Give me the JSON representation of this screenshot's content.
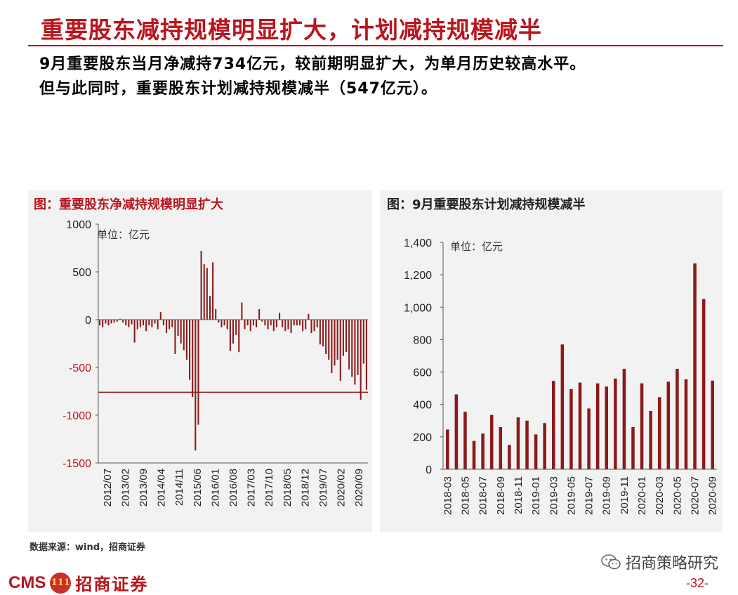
{
  "page": {
    "title": "重要股东减持规模明显扩大，计划减持规模减半",
    "summary_line1": "9月重要股东当月净减持734亿元，较前期明显扩大，为单月历史较高水平。",
    "summary_line2": "但与此同时，重要股东计划减持规模减半（547亿元）。",
    "source": "数据来源：wind，招商证券",
    "wechat_label": "招商策略研究",
    "logo_cms": "CMS",
    "logo_badge": "111",
    "logo_cn": "招商证券",
    "page_number": "-32-"
  },
  "colors": {
    "accent": "#b8151d",
    "bar": "#8b1a1a",
    "panel_bg": "#f2f2f2"
  },
  "chart_data": [
    {
      "type": "bar",
      "title": "图：重要股东净减持规模明显扩大",
      "unit_label": "单位：亿元",
      "ylim": [
        -1500,
        1000
      ],
      "yticks": [
        1000,
        500,
        0,
        -500,
        -1000,
        -1500
      ],
      "ytick_labels": [
        "1000",
        "500",
        "0",
        "-500",
        "-1000",
        "-1500"
      ],
      "reference_line": -760,
      "x_tick_labels": [
        "2012/07",
        "2013/02",
        "2013/09",
        "2014/04",
        "2014/11",
        "2015/06",
        "2016/01",
        "2016/08",
        "2017/03",
        "2017/10",
        "2018/05",
        "2018/12",
        "2019/07",
        "2020/02",
        "2020/09"
      ],
      "values": [
        -60,
        -80,
        -40,
        -60,
        -40,
        -30,
        -20,
        10,
        -30,
        -60,
        -80,
        -50,
        -240,
        -100,
        -80,
        -60,
        -120,
        -60,
        -80,
        -40,
        -100,
        80,
        -60,
        -140,
        -100,
        -80,
        -360,
        -170,
        -250,
        -320,
        -420,
        -630,
        -810,
        -1370,
        -1100,
        720,
        580,
        540,
        250,
        600,
        110,
        -30,
        -80,
        -60,
        -100,
        -330,
        -250,
        -160,
        -340,
        180,
        -100,
        -60,
        -120,
        -60,
        -80,
        110,
        -20,
        -60,
        -100,
        -60,
        -120,
        -80,
        70,
        -80,
        -120,
        -100,
        -140,
        -60,
        -60,
        -60,
        -120,
        -100,
        60,
        -140,
        -120,
        -80,
        -260,
        -280,
        -360,
        -420,
        -560,
        -480,
        -420,
        -640,
        -380,
        -340,
        -520,
        -600,
        -680,
        -580,
        -840,
        -460,
        -734
      ]
    },
    {
      "type": "bar",
      "title": "图：9月重要股东计划减持规模减半",
      "unit_label": "单位：亿元",
      "ylim": [
        0,
        1400
      ],
      "yticks": [
        0,
        200,
        400,
        600,
        800,
        1000,
        1200,
        1400
      ],
      "ytick_labels": [
        "0",
        "200",
        "400",
        "600",
        "800",
        "1,000",
        "1,200",
        "1,400"
      ],
      "categories": [
        "2018-03",
        "2018-04",
        "2018-05",
        "2018-06",
        "2018-07",
        "2018-08",
        "2018-09",
        "2018-10",
        "2018-11",
        "2018-12",
        "2019-01",
        "2019-02",
        "2019-03",
        "2019-04",
        "2019-05",
        "2019-06",
        "2019-07",
        "2019-08",
        "2019-09",
        "2019-10",
        "2019-11",
        "2019-12",
        "2020-01",
        "2020-02",
        "2020-03",
        "2020-04",
        "2020-05",
        "2020-06",
        "2020-07",
        "2020-08",
        "2020-09"
      ],
      "x_tick_labels": [
        "2018-03",
        "2018-05",
        "2018-07",
        "2018-09",
        "2018-11",
        "2019-01",
        "2019-03",
        "2019-05",
        "2019-07",
        "2019-09",
        "2019-11",
        "2020-01",
        "2020-03",
        "2020-05",
        "2020-07",
        "2020-09"
      ],
      "values": [
        245,
        462,
        355,
        175,
        220,
        335,
        260,
        150,
        320,
        300,
        215,
        285,
        545,
        770,
        495,
        535,
        375,
        530,
        510,
        560,
        620,
        260,
        530,
        360,
        445,
        540,
        620,
        555,
        1270,
        1050,
        547
      ]
    }
  ]
}
